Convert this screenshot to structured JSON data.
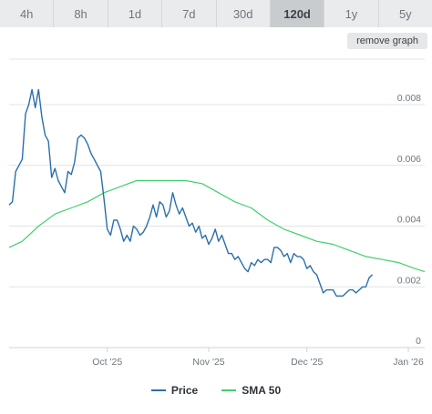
{
  "tabs": [
    {
      "label": "4h",
      "active": false
    },
    {
      "label": "8h",
      "active": false
    },
    {
      "label": "1d",
      "active": false
    },
    {
      "label": "7d",
      "active": false
    },
    {
      "label": "30d",
      "active": false
    },
    {
      "label": "120d",
      "active": true
    },
    {
      "label": "1y",
      "active": false
    },
    {
      "label": "5y",
      "active": false
    }
  ],
  "remove_graph_label": "remove graph",
  "colors": {
    "price": "#2a6fad",
    "sma": "#3fcf6f",
    "grid": "#e2e4e6",
    "axis_text": "#6f767d"
  },
  "chart_data": {
    "type": "line",
    "title": "",
    "xlabel": "",
    "ylabel": "",
    "x_ticks": [
      "Oct '25",
      "Nov '25",
      "Dec '25",
      "Jan '26"
    ],
    "x_tick_dates": [
      "2025-10-01",
      "2025-11-01",
      "2025-12-01",
      "2026-01-01"
    ],
    "y_ticks": [
      "0",
      "0.002",
      "0.004",
      "0.006",
      "0.008"
    ],
    "ylim": [
      0,
      0.0095
    ],
    "xlim": [
      "2025-09-01",
      "2026-01-06"
    ],
    "grid": true,
    "legend_position": "bottom",
    "series": [
      {
        "name": "Price",
        "color": "#2a6fad",
        "points": [
          [
            "2025-09-01",
            0.0047
          ],
          [
            "2025-09-02",
            0.0048
          ],
          [
            "2025-09-03",
            0.0058
          ],
          [
            "2025-09-04",
            0.006
          ],
          [
            "2025-09-05",
            0.0062
          ],
          [
            "2025-09-06",
            0.0077
          ],
          [
            "2025-09-07",
            0.008
          ],
          [
            "2025-09-08",
            0.0085
          ],
          [
            "2025-09-09",
            0.0079
          ],
          [
            "2025-09-10",
            0.0085
          ],
          [
            "2025-09-11",
            0.0076
          ],
          [
            "2025-09-12",
            0.007
          ],
          [
            "2025-09-13",
            0.0068
          ],
          [
            "2025-09-14",
            0.0056
          ],
          [
            "2025-09-15",
            0.0059
          ],
          [
            "2025-09-16",
            0.0055
          ],
          [
            "2025-09-17",
            0.0053
          ],
          [
            "2025-09-18",
            0.0051
          ],
          [
            "2025-09-19",
            0.0058
          ],
          [
            "2025-09-20",
            0.0057
          ],
          [
            "2025-09-21",
            0.0061
          ],
          [
            "2025-09-22",
            0.0069
          ],
          [
            "2025-09-23",
            0.007
          ],
          [
            "2025-09-24",
            0.0069
          ],
          [
            "2025-09-25",
            0.0067
          ],
          [
            "2025-09-26",
            0.0064
          ],
          [
            "2025-09-27",
            0.0062
          ],
          [
            "2025-09-28",
            0.006
          ],
          [
            "2025-09-29",
            0.0058
          ],
          [
            "2025-09-30",
            0.0049
          ],
          [
            "2025-10-01",
            0.0039
          ],
          [
            "2025-10-02",
            0.0037
          ],
          [
            "2025-10-03",
            0.0042
          ],
          [
            "2025-10-04",
            0.0042
          ],
          [
            "2025-10-05",
            0.0039
          ],
          [
            "2025-10-06",
            0.0035
          ],
          [
            "2025-10-07",
            0.0037
          ],
          [
            "2025-10-08",
            0.0035
          ],
          [
            "2025-10-09",
            0.004
          ],
          [
            "2025-10-10",
            0.0039
          ],
          [
            "2025-10-11",
            0.0037
          ],
          [
            "2025-10-12",
            0.0038
          ],
          [
            "2025-10-13",
            0.004
          ],
          [
            "2025-10-14",
            0.0043
          ],
          [
            "2025-10-15",
            0.0047
          ],
          [
            "2025-10-16",
            0.0043
          ],
          [
            "2025-10-17",
            0.0048
          ],
          [
            "2025-10-18",
            0.0047
          ],
          [
            "2025-10-19",
            0.0043
          ],
          [
            "2025-10-20",
            0.0045
          ],
          [
            "2025-10-21",
            0.0051
          ],
          [
            "2025-10-22",
            0.0047
          ],
          [
            "2025-10-23",
            0.0044
          ],
          [
            "2025-10-24",
            0.0046
          ],
          [
            "2025-10-25",
            0.0043
          ],
          [
            "2025-10-26",
            0.004
          ],
          [
            "2025-10-27",
            0.0041
          ],
          [
            "2025-10-28",
            0.0038
          ],
          [
            "2025-10-29",
            0.004
          ],
          [
            "2025-10-30",
            0.0036
          ],
          [
            "2025-10-31",
            0.0037
          ],
          [
            "2025-11-01",
            0.0034
          ],
          [
            "2025-11-02",
            0.0036
          ],
          [
            "2025-11-03",
            0.0039
          ],
          [
            "2025-11-04",
            0.0035
          ],
          [
            "2025-11-05",
            0.0037
          ],
          [
            "2025-11-06",
            0.0034
          ],
          [
            "2025-11-07",
            0.0031
          ],
          [
            "2025-11-08",
            0.0031
          ],
          [
            "2025-11-09",
            0.0029
          ],
          [
            "2025-11-10",
            0.003
          ],
          [
            "2025-11-11",
            0.0028
          ],
          [
            "2025-11-12",
            0.0026
          ],
          [
            "2025-11-13",
            0.0025
          ],
          [
            "2025-11-14",
            0.0028
          ],
          [
            "2025-11-15",
            0.0027
          ],
          [
            "2025-11-16",
            0.0029
          ],
          [
            "2025-11-17",
            0.0028
          ],
          [
            "2025-11-18",
            0.0029
          ],
          [
            "2025-11-19",
            0.0029
          ],
          [
            "2025-11-20",
            0.0028
          ],
          [
            "2025-11-21",
            0.0033
          ],
          [
            "2025-11-22",
            0.0033
          ],
          [
            "2025-11-23",
            0.0032
          ],
          [
            "2025-11-24",
            0.003
          ],
          [
            "2025-11-25",
            0.0031
          ],
          [
            "2025-11-26",
            0.0028
          ],
          [
            "2025-11-27",
            0.0031
          ],
          [
            "2025-11-28",
            0.003
          ],
          [
            "2025-11-29",
            0.003
          ],
          [
            "2025-11-30",
            0.0029
          ],
          [
            "2025-12-01",
            0.0026
          ],
          [
            "2025-12-02",
            0.0027
          ],
          [
            "2025-12-03",
            0.0025
          ],
          [
            "2025-12-04",
            0.0024
          ],
          [
            "2025-12-05",
            0.0021
          ],
          [
            "2025-12-06",
            0.0018
          ],
          [
            "2025-12-07",
            0.0019
          ],
          [
            "2025-12-08",
            0.0019
          ],
          [
            "2025-12-09",
            0.0019
          ],
          [
            "2025-12-10",
            0.0017
          ],
          [
            "2025-12-11",
            0.0017
          ],
          [
            "2025-12-12",
            0.0017
          ],
          [
            "2025-12-13",
            0.0018
          ],
          [
            "2025-12-14",
            0.0019
          ],
          [
            "2025-12-15",
            0.0019
          ],
          [
            "2025-12-16",
            0.0018
          ],
          [
            "2025-12-17",
            0.0019
          ],
          [
            "2025-12-18",
            0.002
          ],
          [
            "2025-12-19",
            0.002
          ],
          [
            "2025-12-20",
            0.0023
          ],
          [
            "2025-12-21",
            0.0024
          ]
        ]
      },
      {
        "name": "SMA 50",
        "color": "#3fcf6f",
        "points": [
          [
            "2025-09-01",
            0.0033
          ],
          [
            "2025-09-05",
            0.0035
          ],
          [
            "2025-09-10",
            0.004
          ],
          [
            "2025-09-15",
            0.0044
          ],
          [
            "2025-09-20",
            0.0046
          ],
          [
            "2025-09-25",
            0.0048
          ],
          [
            "2025-09-30",
            0.0051
          ],
          [
            "2025-10-05",
            0.0053
          ],
          [
            "2025-10-10",
            0.0055
          ],
          [
            "2025-10-15",
            0.0055
          ],
          [
            "2025-10-20",
            0.0055
          ],
          [
            "2025-10-25",
            0.0055
          ],
          [
            "2025-10-30",
            0.0054
          ],
          [
            "2025-11-04",
            0.0051
          ],
          [
            "2025-11-09",
            0.0048
          ],
          [
            "2025-11-14",
            0.0046
          ],
          [
            "2025-11-19",
            0.0042
          ],
          [
            "2025-11-24",
            0.0039
          ],
          [
            "2025-11-29",
            0.0037
          ],
          [
            "2025-12-04",
            0.0035
          ],
          [
            "2025-12-09",
            0.0034
          ],
          [
            "2025-12-14",
            0.0032
          ],
          [
            "2025-12-19",
            0.003
          ],
          [
            "2025-12-24",
            0.0029
          ],
          [
            "2025-12-29",
            0.0028
          ],
          [
            "2026-01-03",
            0.0026
          ],
          [
            "2026-01-06",
            0.0025
          ]
        ]
      }
    ]
  }
}
